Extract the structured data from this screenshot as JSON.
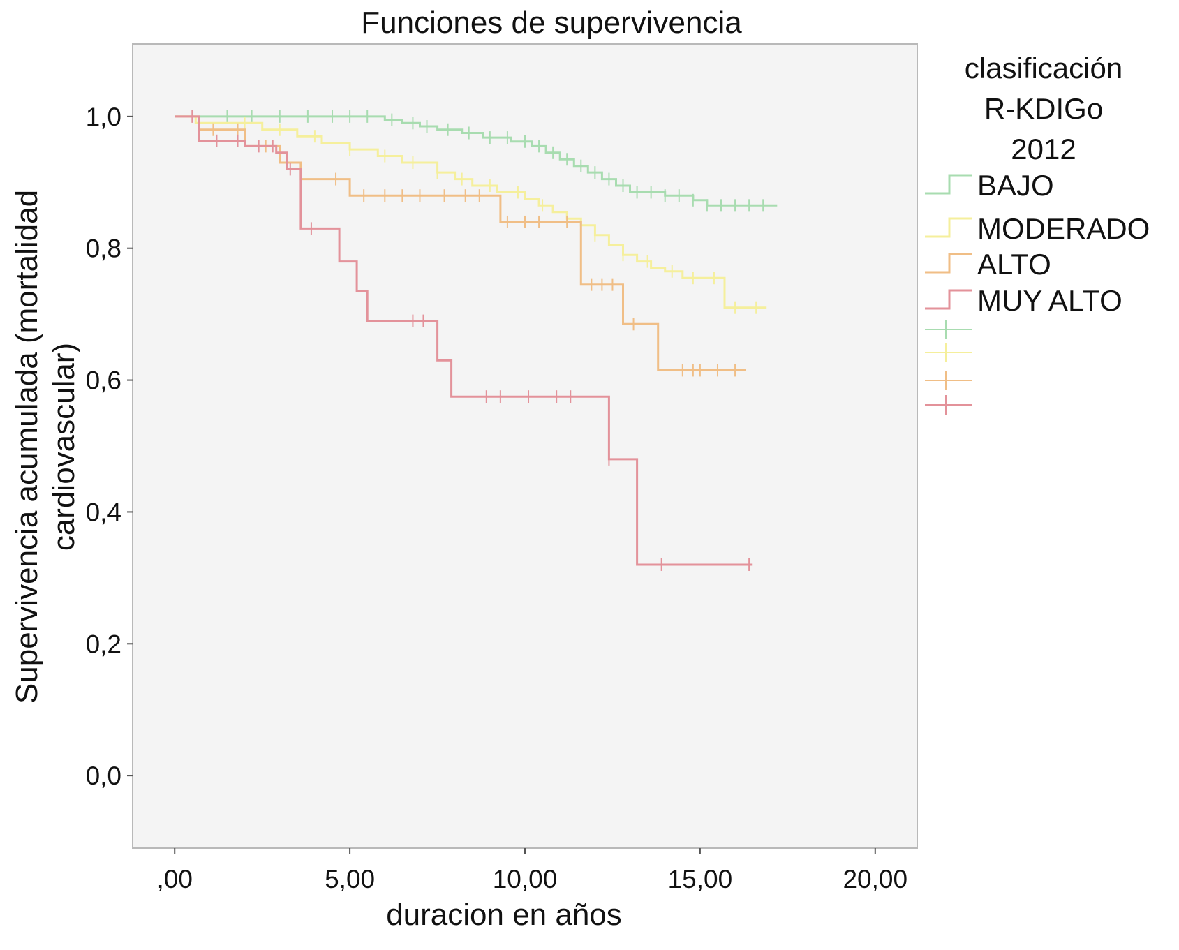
{
  "chart_data": {
    "type": "line",
    "title": "Funciones de supervivencia",
    "xlabel": "duracion en años",
    "ylabel_line1": "Supervivencia acumulada (mortalidad",
    "ylabel_line2": "cardiovascular)",
    "xlim": [
      -1.2,
      21.2
    ],
    "ylim": [
      -0.11,
      1.11
    ],
    "x_ticks": [
      0,
      5,
      10,
      15,
      20
    ],
    "x_tick_labels": [
      ",00",
      "5,00",
      "10,00",
      "15,00",
      "20,00"
    ],
    "y_ticks": [
      0,
      0.2,
      0.4,
      0.6,
      0.8,
      1.0
    ],
    "y_tick_labels": [
      "0,0",
      "0,2",
      "0,4",
      "0,6",
      "0,8",
      "1,0"
    ],
    "legend_title": [
      "clasificación",
      "R-KDIGo",
      "2012"
    ],
    "grid": false,
    "legend_position": "right",
    "series": [
      {
        "name": "BAJO",
        "color": "#a8dcb0",
        "steps": [
          [
            0,
            1.0
          ],
          [
            5.6,
            1.0
          ],
          [
            6.0,
            0.995
          ],
          [
            6.5,
            0.99
          ],
          [
            7.0,
            0.985
          ],
          [
            7.5,
            0.98
          ],
          [
            8.2,
            0.975
          ],
          [
            8.8,
            0.968
          ],
          [
            9.6,
            0.962
          ],
          [
            10.2,
            0.955
          ],
          [
            10.6,
            0.945
          ],
          [
            11.0,
            0.935
          ],
          [
            11.4,
            0.925
          ],
          [
            11.8,
            0.915
          ],
          [
            12.2,
            0.905
          ],
          [
            12.6,
            0.895
          ],
          [
            13.0,
            0.885
          ],
          [
            14.0,
            0.88
          ],
          [
            14.8,
            0.873
          ],
          [
            15.2,
            0.865
          ],
          [
            17.2,
            0.865
          ]
        ],
        "censors": [
          1.5,
          2.2,
          3.0,
          3.8,
          4.5,
          5.0,
          5.5,
          6.2,
          6.8,
          7.2,
          7.8,
          8.4,
          9.0,
          9.5,
          10.0,
          10.4,
          10.8,
          11.2,
          11.6,
          12.0,
          12.4,
          12.8,
          13.2,
          13.6,
          14.0,
          14.4,
          14.8,
          15.2,
          15.6,
          16.0,
          16.4,
          16.8
        ]
      },
      {
        "name": "MODERADO",
        "color": "#f5ef9c",
        "steps": [
          [
            0,
            1.0
          ],
          [
            0.6,
            0.99
          ],
          [
            2.5,
            0.98
          ],
          [
            3.5,
            0.97
          ],
          [
            4.2,
            0.96
          ],
          [
            5.0,
            0.95
          ],
          [
            5.8,
            0.94
          ],
          [
            6.5,
            0.93
          ],
          [
            7.5,
            0.915
          ],
          [
            8.0,
            0.905
          ],
          [
            8.5,
            0.895
          ],
          [
            9.2,
            0.885
          ],
          [
            10.0,
            0.875
          ],
          [
            10.4,
            0.865
          ],
          [
            10.8,
            0.855
          ],
          [
            11.2,
            0.845
          ],
          [
            11.6,
            0.835
          ],
          [
            12.0,
            0.82
          ],
          [
            12.4,
            0.805
          ],
          [
            12.8,
            0.79
          ],
          [
            13.2,
            0.78
          ],
          [
            13.6,
            0.77
          ],
          [
            14.0,
            0.765
          ],
          [
            14.5,
            0.755
          ],
          [
            15.7,
            0.71
          ],
          [
            16.9,
            0.71
          ]
        ],
        "censors": [
          2.0,
          3.0,
          4.0,
          5.0,
          6.0,
          6.8,
          7.5,
          8.2,
          9.0,
          9.8,
          10.5,
          11.2,
          12.0,
          12.8,
          13.5,
          14.2,
          14.8,
          15.4,
          16.0,
          16.6
        ]
      },
      {
        "name": "ALTO",
        "color": "#f0be86",
        "steps": [
          [
            0,
            1.0
          ],
          [
            0.7,
            0.98
          ],
          [
            2.0,
            0.955
          ],
          [
            3.0,
            0.93
          ],
          [
            3.6,
            0.905
          ],
          [
            5.0,
            0.88
          ],
          [
            9.3,
            0.84
          ],
          [
            11.6,
            0.745
          ],
          [
            12.8,
            0.685
          ],
          [
            13.8,
            0.615
          ],
          [
            16.3,
            0.615
          ]
        ],
        "censors": [
          1.1,
          1.8,
          2.6,
          3.2,
          4.6,
          5.4,
          6.0,
          6.5,
          7.0,
          7.7,
          8.3,
          8.7,
          9.5,
          10.0,
          10.4,
          11.2,
          11.9,
          12.2,
          12.5,
          13.1,
          14.5,
          14.8,
          15.0,
          15.5,
          16.0
        ]
      },
      {
        "name": "MUY ALTO",
        "color": "#e3929a",
        "steps": [
          [
            0,
            1.0
          ],
          [
            0.7,
            0.963
          ],
          [
            2.0,
            0.955
          ],
          [
            2.9,
            0.945
          ],
          [
            3.2,
            0.92
          ],
          [
            3.6,
            0.83
          ],
          [
            4.7,
            0.78
          ],
          [
            5.2,
            0.735
          ],
          [
            5.5,
            0.69
          ],
          [
            7.5,
            0.63
          ],
          [
            7.9,
            0.575
          ],
          [
            12.4,
            0.48
          ],
          [
            13.2,
            0.32
          ],
          [
            16.5,
            0.32
          ]
        ],
        "censors": [
          0.5,
          1.2,
          1.8,
          2.4,
          2.8,
          3.3,
          3.9,
          6.8,
          7.1,
          8.9,
          9.3,
          10.1,
          10.9,
          11.3,
          12.4,
          13.9,
          16.4
        ]
      }
    ]
  }
}
